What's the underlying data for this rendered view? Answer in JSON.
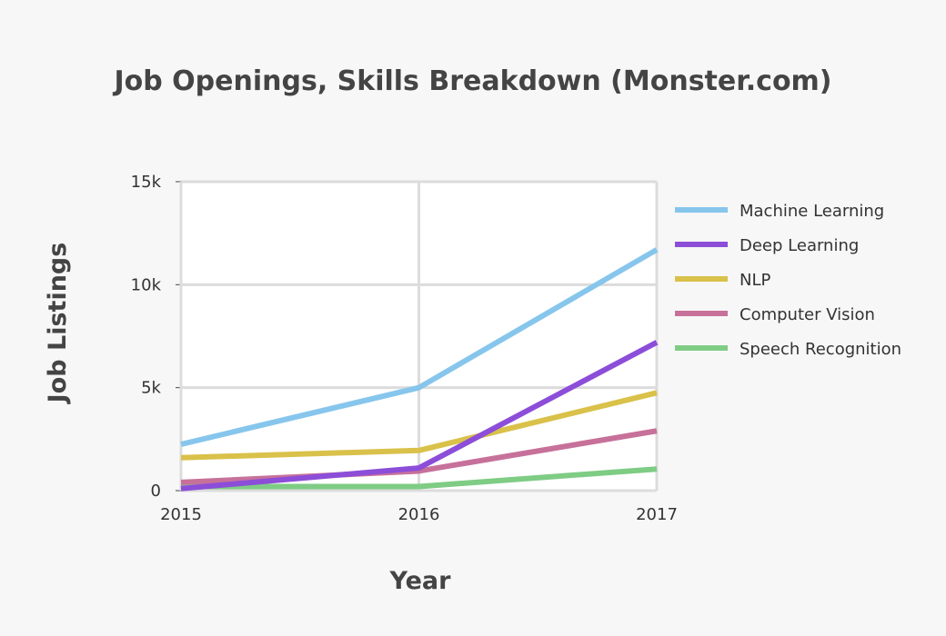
{
  "chart_data": {
    "type": "line",
    "title": "Job Openings, Skills Breakdown (Monster.com)",
    "xlabel": "Year",
    "ylabel": "Job Listings",
    "x": [
      2015,
      2016,
      2017
    ],
    "x_tick_labels": [
      "2015",
      "2016",
      "2017"
    ],
    "ylim": [
      0,
      15000
    ],
    "y_ticks": [
      0,
      5000,
      10000,
      15000
    ],
    "y_tick_labels": [
      "0",
      "5k",
      "10k",
      "15k"
    ],
    "grid": true,
    "legend_position": "right",
    "series": [
      {
        "name": "Machine Learning",
        "color": "#87c6ec",
        "values": [
          2250,
          5000,
          11700
        ]
      },
      {
        "name": "Deep Learning",
        "color": "#8c4ed8",
        "values": [
          100,
          1100,
          7200
        ]
      },
      {
        "name": "NLP",
        "color": "#d9c14a",
        "values": [
          1600,
          1950,
          4750
        ]
      },
      {
        "name": "Computer Vision",
        "color": "#c7719a",
        "values": [
          400,
          950,
          2900
        ]
      },
      {
        "name": "Speech Recognition",
        "color": "#7fcc85",
        "values": [
          200,
          200,
          1050
        ]
      }
    ]
  }
}
